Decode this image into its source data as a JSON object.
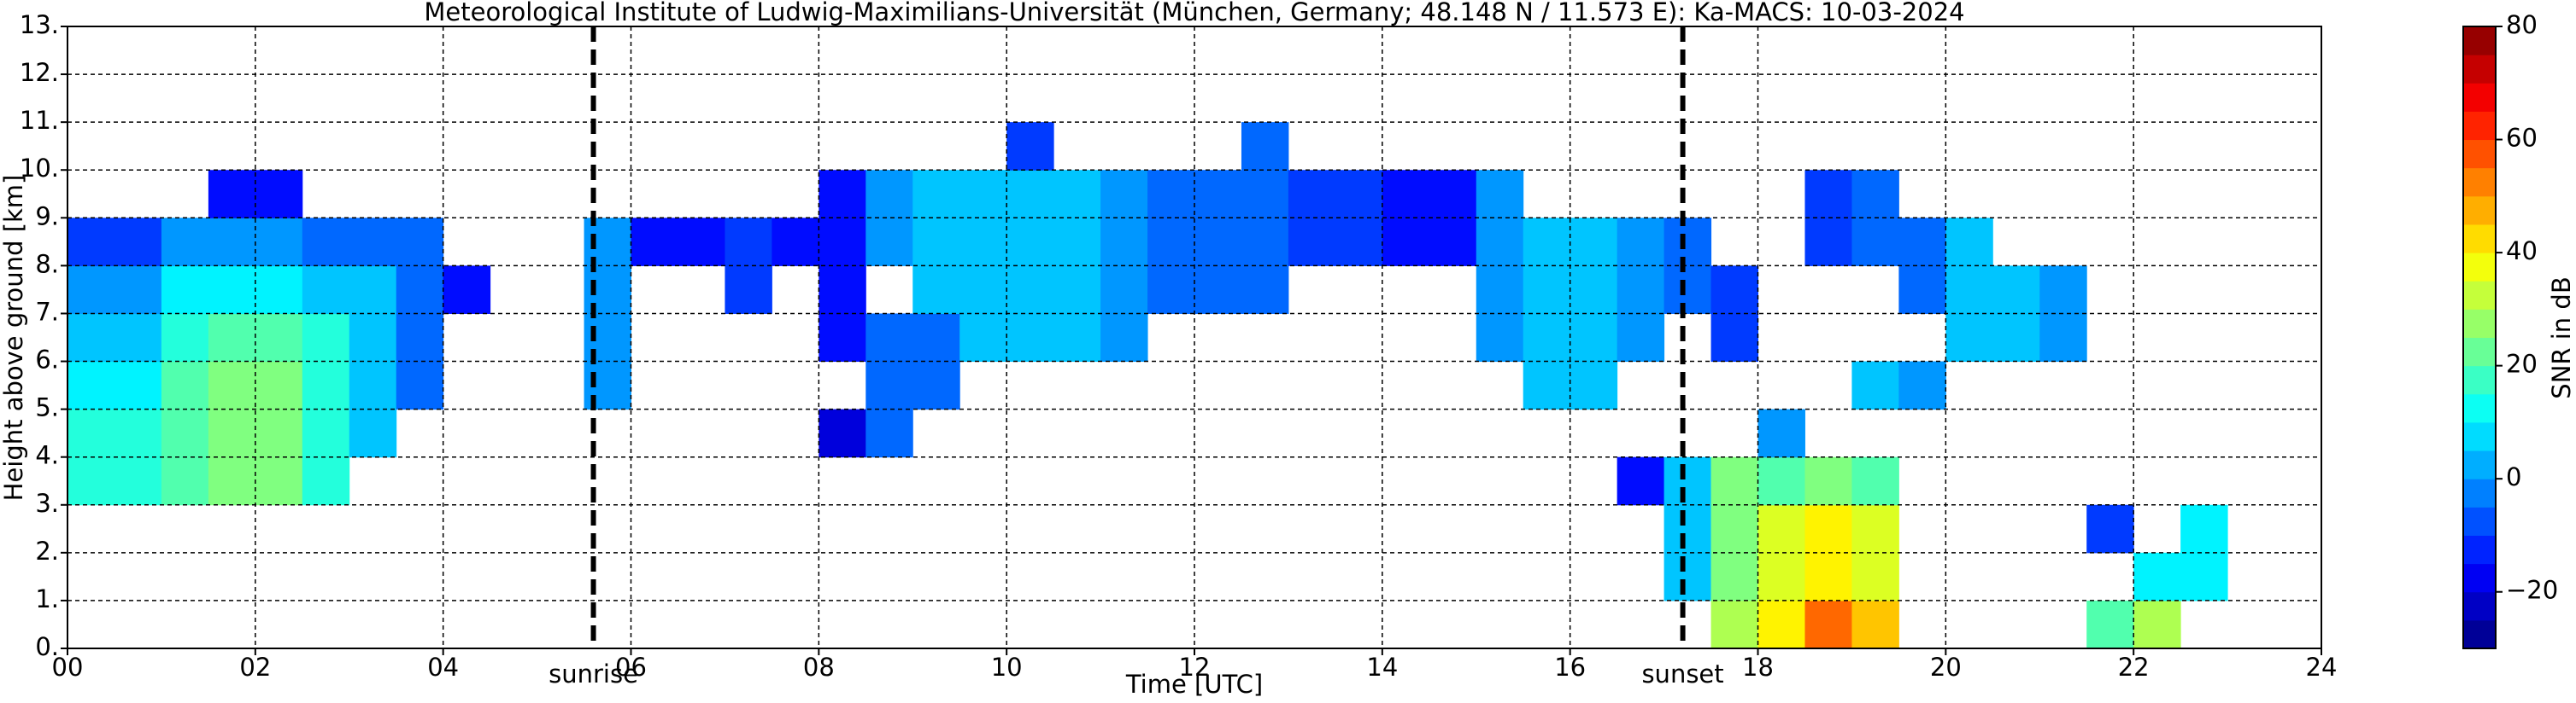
{
  "chart_data": {
    "type": "heatmap",
    "title": "Meteorological Institute of Ludwig-Maximilians-Universität (München, Germany; 48.148 N / 11.573 E):    Ka-MACS: 10-03-2024",
    "xlabel": "Time [UTC]",
    "ylabel": "Height above ground [km]",
    "colorbar_label": "SNR in dB",
    "x": [
      0,
      0.5,
      1,
      1.5,
      2,
      2.5,
      3,
      3.5,
      4,
      4.5,
      5,
      5.5,
      6,
      6.5,
      7,
      7.5,
      8,
      8.5,
      9,
      9.5,
      10,
      10.5,
      11,
      11.5,
      12,
      12.5,
      13,
      13.5,
      14,
      14.5,
      15,
      15.5,
      16,
      16.5,
      17,
      17.5,
      18,
      18.5,
      19,
      19.5,
      20,
      20.5,
      21,
      21.5,
      22,
      22.5,
      23,
      23.5,
      24
    ],
    "y": [
      0,
      1,
      2,
      3,
      4,
      5,
      6,
      7,
      8,
      9,
      10,
      11,
      12,
      13
    ],
    "z": [
      [
        null,
        null,
        null,
        null,
        null,
        null,
        null,
        null,
        null,
        null,
        null,
        null,
        null,
        null,
        null,
        null,
        null,
        null,
        null,
        null,
        null,
        null,
        null,
        null,
        null,
        null,
        null,
        null,
        null,
        null,
        null,
        null,
        null,
        null,
        null,
        30,
        40,
        55,
        45,
        null,
        null,
        null,
        null,
        20,
        30,
        null,
        null,
        null
      ],
      [
        null,
        null,
        null,
        null,
        null,
        null,
        null,
        null,
        null,
        null,
        null,
        null,
        null,
        null,
        null,
        null,
        null,
        null,
        null,
        null,
        null,
        null,
        null,
        null,
        null,
        null,
        null,
        null,
        null,
        null,
        null,
        null,
        null,
        null,
        5,
        25,
        35,
        40,
        35,
        null,
        null,
        null,
        null,
        null,
        10,
        10,
        null,
        null
      ],
      [
        null,
        null,
        null,
        null,
        null,
        null,
        null,
        null,
        null,
        null,
        null,
        null,
        null,
        null,
        null,
        null,
        null,
        null,
        null,
        null,
        null,
        null,
        null,
        null,
        null,
        null,
        null,
        null,
        null,
        null,
        null,
        null,
        null,
        null,
        5,
        25,
        35,
        40,
        35,
        null,
        null,
        null,
        null,
        -10,
        null,
        10,
        null,
        null
      ],
      [
        15,
        15,
        20,
        25,
        25,
        15,
        null,
        null,
        null,
        null,
        null,
        null,
        null,
        null,
        null,
        null,
        null,
        null,
        null,
        null,
        null,
        null,
        null,
        null,
        null,
        null,
        null,
        null,
        null,
        null,
        null,
        null,
        null,
        -15,
        5,
        25,
        20,
        25,
        20,
        null,
        null,
        null,
        null,
        null,
        null,
        null,
        null,
        null
      ],
      [
        15,
        15,
        20,
        25,
        25,
        15,
        5,
        null,
        null,
        null,
        null,
        null,
        null,
        null,
        null,
        null,
        -20,
        -5,
        null,
        null,
        null,
        null,
        null,
        null,
        null,
        null,
        null,
        null,
        null,
        null,
        null,
        null,
        null,
        null,
        null,
        null,
        0,
        null,
        null,
        null,
        null,
        null,
        null,
        null,
        null,
        null,
        null,
        null
      ],
      [
        10,
        10,
        20,
        25,
        25,
        15,
        5,
        -5,
        null,
        null,
        null,
        0,
        null,
        null,
        null,
        null,
        null,
        -5,
        -5,
        null,
        null,
        null,
        null,
        null,
        null,
        null,
        null,
        null,
        null,
        null,
        null,
        5,
        5,
        null,
        null,
        null,
        null,
        null,
        5,
        0,
        null,
        null,
        null,
        null,
        null,
        null,
        null,
        null
      ],
      [
        5,
        5,
        15,
        20,
        20,
        15,
        5,
        -5,
        null,
        null,
        null,
        0,
        null,
        null,
        null,
        null,
        -15,
        -5,
        -5,
        5,
        5,
        5,
        0,
        null,
        null,
        null,
        null,
        null,
        null,
        null,
        0,
        5,
        5,
        0,
        null,
        -10,
        null,
        null,
        null,
        null,
        5,
        5,
        0,
        null,
        null,
        null,
        null,
        null
      ],
      [
        0,
        0,
        10,
        10,
        10,
        5,
        5,
        -5,
        -15,
        null,
        null,
        0,
        null,
        null,
        -10,
        null,
        -15,
        null,
        5,
        5,
        5,
        5,
        0,
        -5,
        -5,
        -5,
        null,
        null,
        null,
        null,
        0,
        5,
        5,
        0,
        -5,
        -10,
        null,
        null,
        null,
        -5,
        5,
        5,
        0,
        null,
        null,
        null,
        null,
        null
      ],
      [
        -10,
        -10,
        0,
        0,
        0,
        -5,
        -5,
        -5,
        null,
        null,
        null,
        0,
        -15,
        -15,
        -10,
        -15,
        -15,
        0,
        5,
        5,
        5,
        5,
        0,
        -5,
        -5,
        -5,
        -10,
        -10,
        -15,
        -15,
        0,
        5,
        5,
        0,
        -5,
        null,
        null,
        -10,
        -5,
        -5,
        5,
        null,
        null,
        null,
        null,
        null,
        null,
        null
      ],
      [
        null,
        null,
        null,
        -15,
        -15,
        null,
        null,
        null,
        null,
        null,
        null,
        null,
        null,
        null,
        null,
        null,
        -15,
        0,
        5,
        5,
        5,
        5,
        0,
        -5,
        -5,
        -5,
        -10,
        -10,
        -15,
        -15,
        0,
        null,
        null,
        null,
        null,
        null,
        null,
        -10,
        -5,
        null,
        null,
        null,
        null,
        null,
        null,
        null,
        null,
        null
      ],
      [
        null,
        null,
        null,
        null,
        null,
        null,
        null,
        null,
        null,
        null,
        null,
        null,
        null,
        null,
        null,
        null,
        null,
        null,
        null,
        null,
        -10,
        null,
        null,
        null,
        null,
        -5,
        null,
        null,
        null,
        null,
        null,
        null,
        null,
        null,
        null,
        null,
        null,
        null,
        null,
        null,
        null,
        null,
        null,
        null,
        null,
        null,
        null,
        null
      ],
      [
        null,
        null,
        null,
        null,
        null,
        null,
        null,
        null,
        null,
        null,
        null,
        null,
        null,
        null,
        null,
        null,
        null,
        null,
        null,
        null,
        null,
        null,
        null,
        null,
        null,
        null,
        null,
        null,
        null,
        null,
        null,
        null,
        null,
        null,
        null,
        null,
        null,
        null,
        null,
        null,
        null,
        null,
        null,
        null,
        null,
        null,
        null,
        null
      ],
      [
        null,
        null,
        null,
        null,
        null,
        null,
        null,
        null,
        null,
        null,
        null,
        null,
        null,
        null,
        null,
        null,
        null,
        null,
        null,
        null,
        null,
        null,
        null,
        null,
        null,
        null,
        null,
        null,
        null,
        null,
        null,
        null,
        null,
        null,
        null,
        null,
        null,
        null,
        null,
        null,
        null,
        null,
        null,
        null,
        null,
        null,
        null,
        null
      ]
    ],
    "xlim": [
      0,
      24
    ],
    "ylim": [
      0,
      13
    ],
    "xticks": [
      {
        "value": 0,
        "label": "00"
      },
      {
        "value": 2,
        "label": "02"
      },
      {
        "value": 4,
        "label": "04"
      },
      {
        "value": 6,
        "label": "06"
      },
      {
        "value": 8,
        "label": "08"
      },
      {
        "value": 10,
        "label": "10"
      },
      {
        "value": 12,
        "label": "12"
      },
      {
        "value": 14,
        "label": "14"
      },
      {
        "value": 16,
        "label": "16"
      },
      {
        "value": 18,
        "label": "18"
      },
      {
        "value": 20,
        "label": "20"
      },
      {
        "value": 22,
        "label": "22"
      },
      {
        "value": 24,
        "label": "24"
      }
    ],
    "yticks": [
      {
        "value": 0,
        "label": "0."
      },
      {
        "value": 1,
        "label": "1."
      },
      {
        "value": 2,
        "label": "2."
      },
      {
        "value": 3,
        "label": "3."
      },
      {
        "value": 4,
        "label": "4."
      },
      {
        "value": 5,
        "label": "5."
      },
      {
        "value": 6,
        "label": "6."
      },
      {
        "value": 7,
        "label": "7."
      },
      {
        "value": 8,
        "label": "8."
      },
      {
        "value": 9,
        "label": "9."
      },
      {
        "value": 10,
        "label": "10."
      },
      {
        "value": 11,
        "label": "11."
      },
      {
        "value": 12,
        "label": "12."
      },
      {
        "value": 13,
        "label": "13."
      }
    ],
    "clim": [
      -30,
      80
    ],
    "cticks": [
      {
        "value": -20,
        "label": "−20"
      },
      0,
      20,
      40,
      60,
      80
    ],
    "grid": true,
    "vlines": [
      {
        "x": 5.6,
        "label": "sunrise"
      },
      {
        "x": 17.2,
        "label": "sunset"
      }
    ]
  }
}
